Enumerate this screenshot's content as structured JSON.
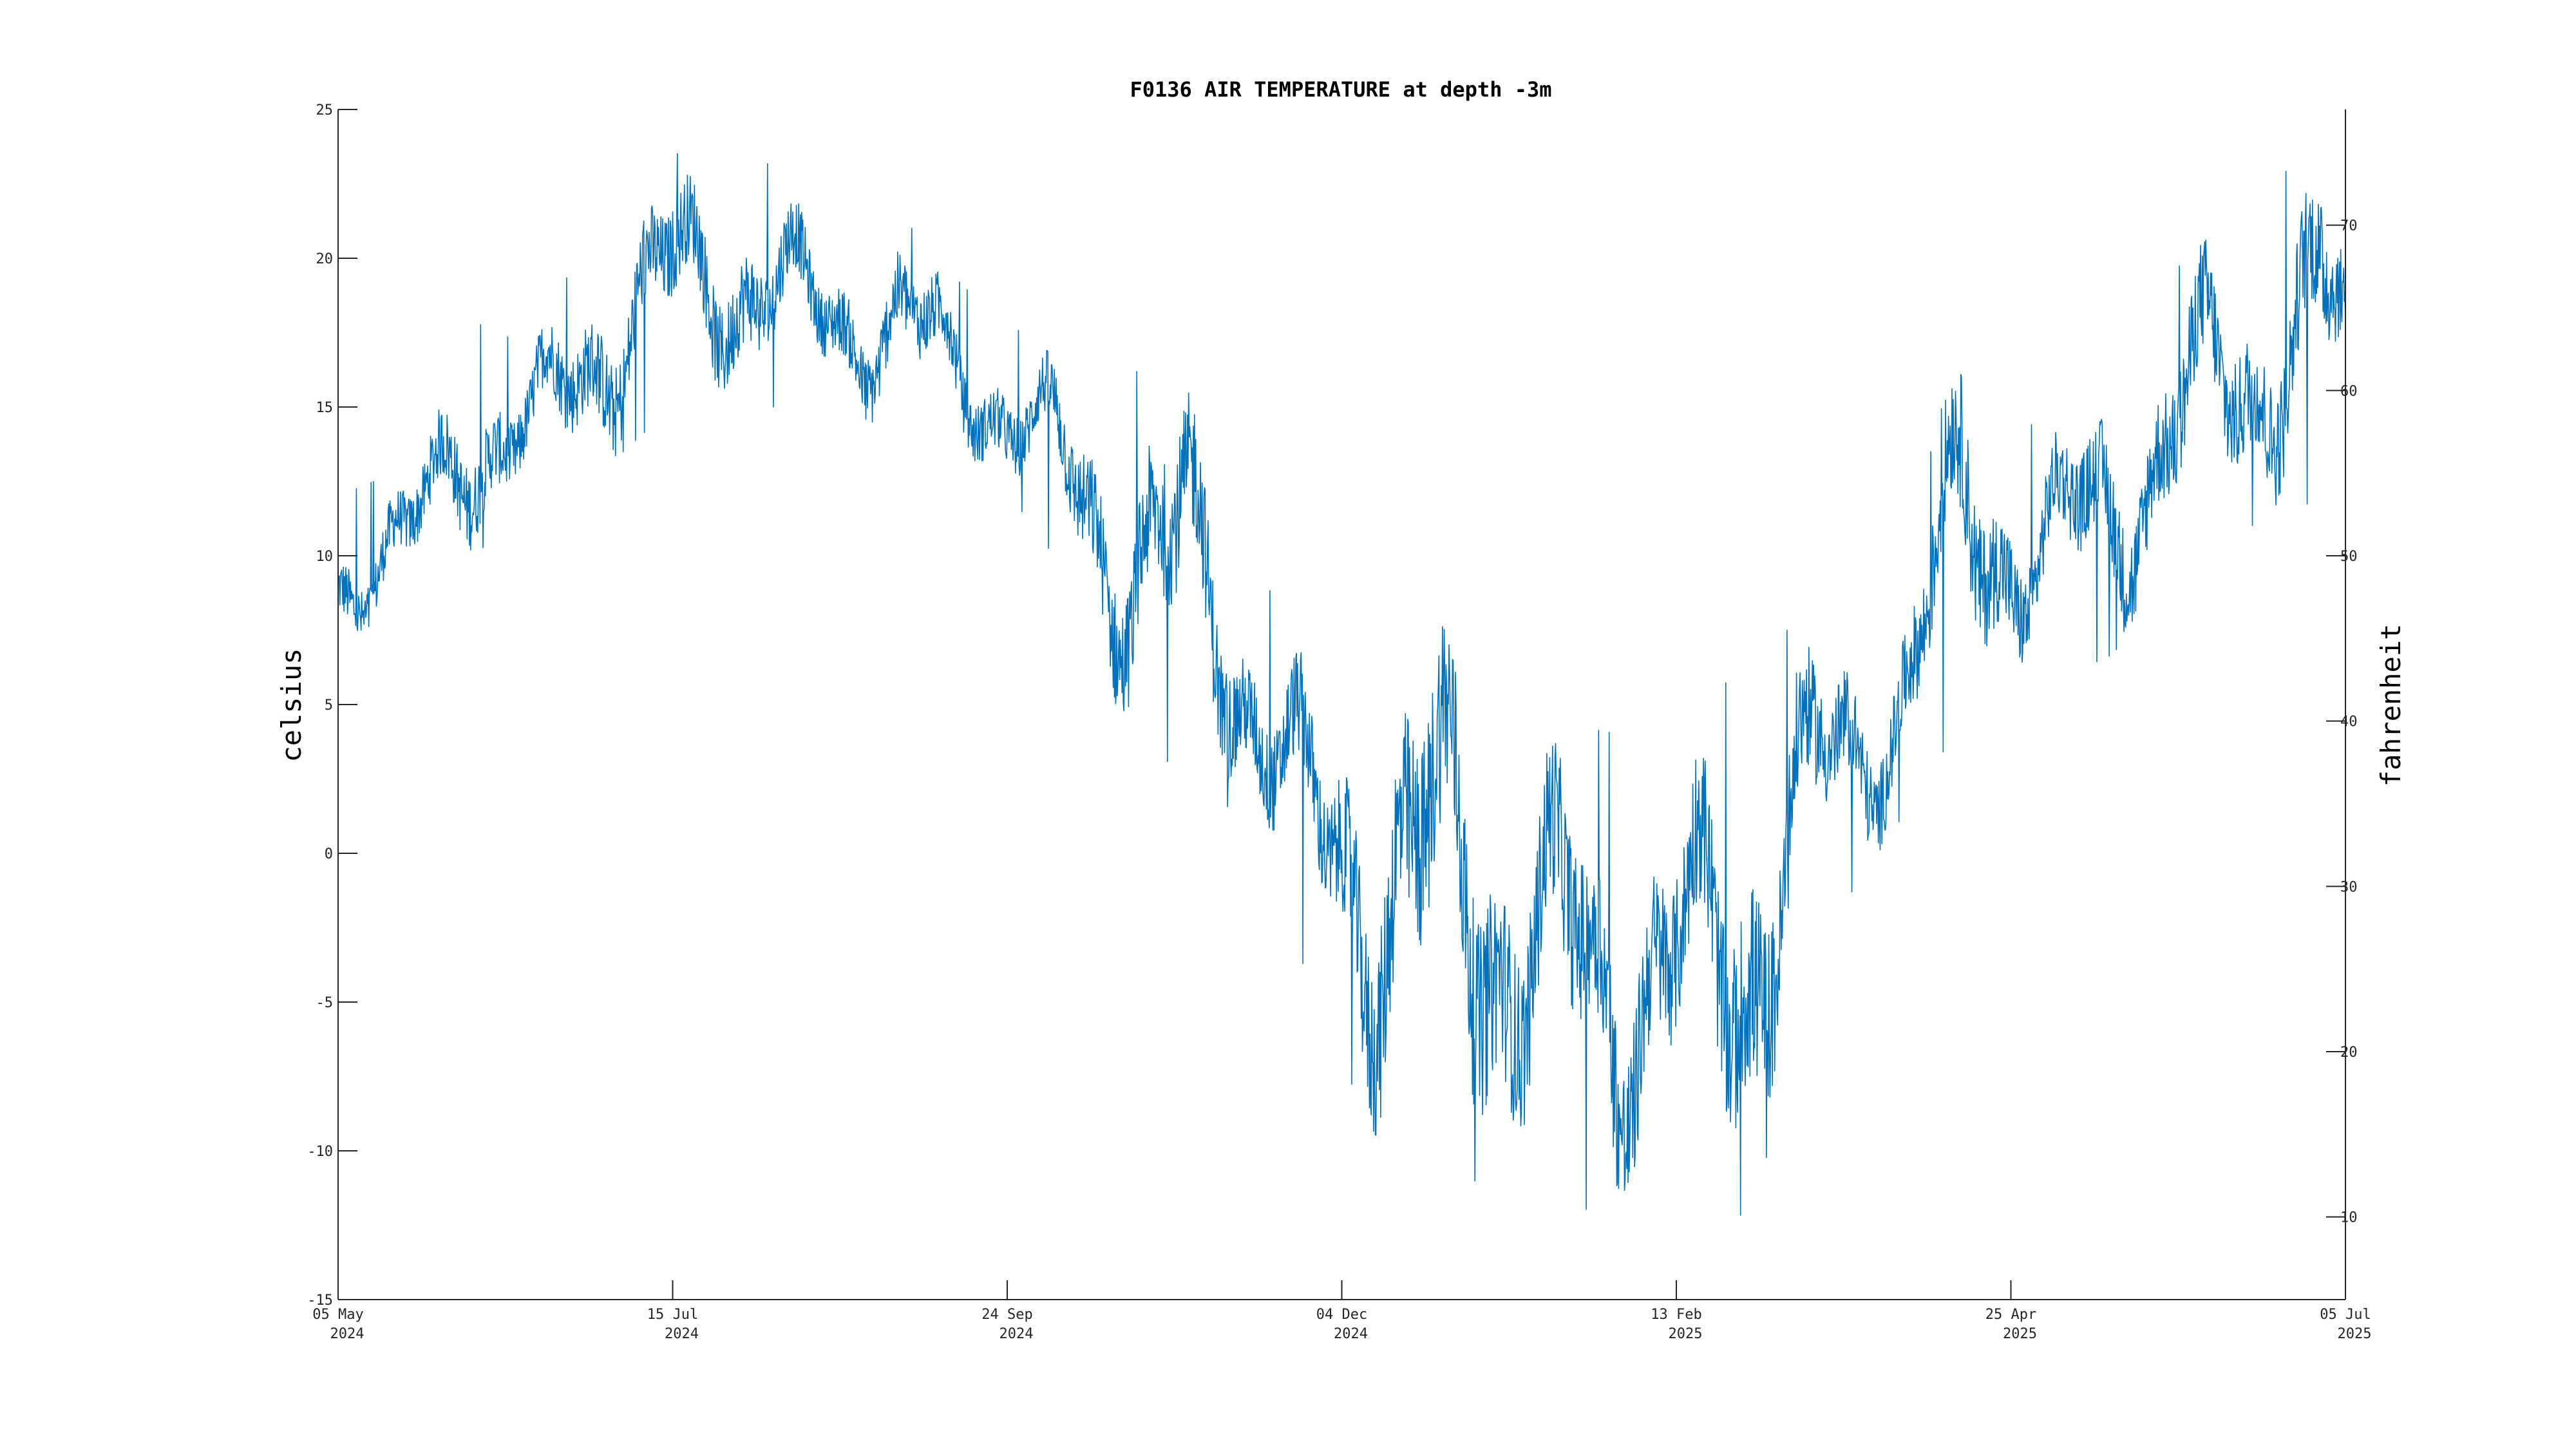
{
  "chart_data": {
    "type": "line",
    "title": "F0136 AIR TEMPERATURE at depth -3m",
    "ylabel_left": "celsius",
    "ylabel_right": "fahrenheit",
    "xlim": [
      "2024-05-05",
      "2025-07-05"
    ],
    "ylim_left": [
      -15,
      25
    ],
    "ylim_right_fahrenheit": [
      5,
      77
    ],
    "x_ticks": [
      {
        "date": "2024-05-05",
        "label1": "05 May",
        "label2": "2024"
      },
      {
        "date": "2024-07-15",
        "label1": "15 Jul",
        "label2": "2024"
      },
      {
        "date": "2024-09-24",
        "label1": "24 Sep",
        "label2": "2024"
      },
      {
        "date": "2024-12-04",
        "label1": "04 Dec",
        "label2": "2024"
      },
      {
        "date": "2025-02-13",
        "label1": "13 Feb",
        "label2": "2025"
      },
      {
        "date": "2025-04-25",
        "label1": "25 Apr",
        "label2": "2025"
      },
      {
        "date": "2025-07-05",
        "label1": "05 Jul",
        "label2": "2025"
      }
    ],
    "y_ticks_left": [
      "-15",
      "-10",
      "-5",
      "0",
      "5",
      "10",
      "15",
      "20",
      "25"
    ],
    "y_ticks_right": [
      "10",
      "20",
      "30",
      "40",
      "50",
      "60",
      "70"
    ],
    "grid": false,
    "series": [
      {
        "color": "#0072BD",
        "envelope_daily": [
          {
            "x": "2024-05-05",
            "min": 6.5,
            "max": 12.0
          },
          {
            "x": "2024-05-20",
            "min": 7.5,
            "max": 13.0
          },
          {
            "x": "2024-06-01",
            "min": 10.0,
            "max": 18.0
          },
          {
            "x": "2024-06-15",
            "min": 11.0,
            "max": 17.0
          },
          {
            "x": "2024-07-01",
            "min": 13.0,
            "max": 22.0
          },
          {
            "x": "2024-07-15",
            "min": 15.0,
            "max": 23.5
          },
          {
            "x": "2024-08-01",
            "min": 15.0,
            "max": 23.8
          },
          {
            "x": "2024-08-15",
            "min": 15.0,
            "max": 21.0
          },
          {
            "x": "2024-09-01",
            "min": 14.0,
            "max": 21.5
          },
          {
            "x": "2024-09-15",
            "min": 13.0,
            "max": 19.0
          },
          {
            "x": "2024-10-01",
            "min": 11.0,
            "max": 17.0
          },
          {
            "x": "2024-10-15",
            "min": 5.0,
            "max": 16.0
          },
          {
            "x": "2024-11-01",
            "min": 2.5,
            "max": 16.5
          },
          {
            "x": "2024-11-15",
            "min": 1.0,
            "max": 10.0
          },
          {
            "x": "2024-12-01",
            "min": -6.0,
            "max": 5.0
          },
          {
            "x": "2024-12-15",
            "min": -10.8,
            "max": 9.5
          },
          {
            "x": "2025-01-01",
            "min": -11.0,
            "max": 8.5
          },
          {
            "x": "2025-01-15",
            "min": -11.5,
            "max": 4.5
          },
          {
            "x": "2025-02-01",
            "min": -12.3,
            "max": 4.0
          },
          {
            "x": "2025-02-15",
            "min": -11.5,
            "max": 3.0
          },
          {
            "x": "2025-03-01",
            "min": -12.3,
            "max": 7.5
          },
          {
            "x": "2025-03-15",
            "min": -3.0,
            "max": 7.5
          },
          {
            "x": "2025-04-01",
            "min": 1.0,
            "max": 9.0
          },
          {
            "x": "2025-04-15",
            "min": 4.5,
            "max": 18.0
          },
          {
            "x": "2025-05-01",
            "min": 6.0,
            "max": 14.0
          },
          {
            "x": "2025-05-15",
            "min": 6.5,
            "max": 16.5
          },
          {
            "x": "2025-06-01",
            "min": 9.0,
            "max": 20.0
          },
          {
            "x": "2025-06-15",
            "min": 11.0,
            "max": 22.0
          },
          {
            "x": "2025-07-01",
            "min": 12.0,
            "max": 24.0
          },
          {
            "x": "2025-07-05",
            "min": 14.0,
            "max": 21.0
          }
        ],
        "description_hourly_trace": "dense hourly temperature trace oscillating between min and max"
      }
    ]
  }
}
